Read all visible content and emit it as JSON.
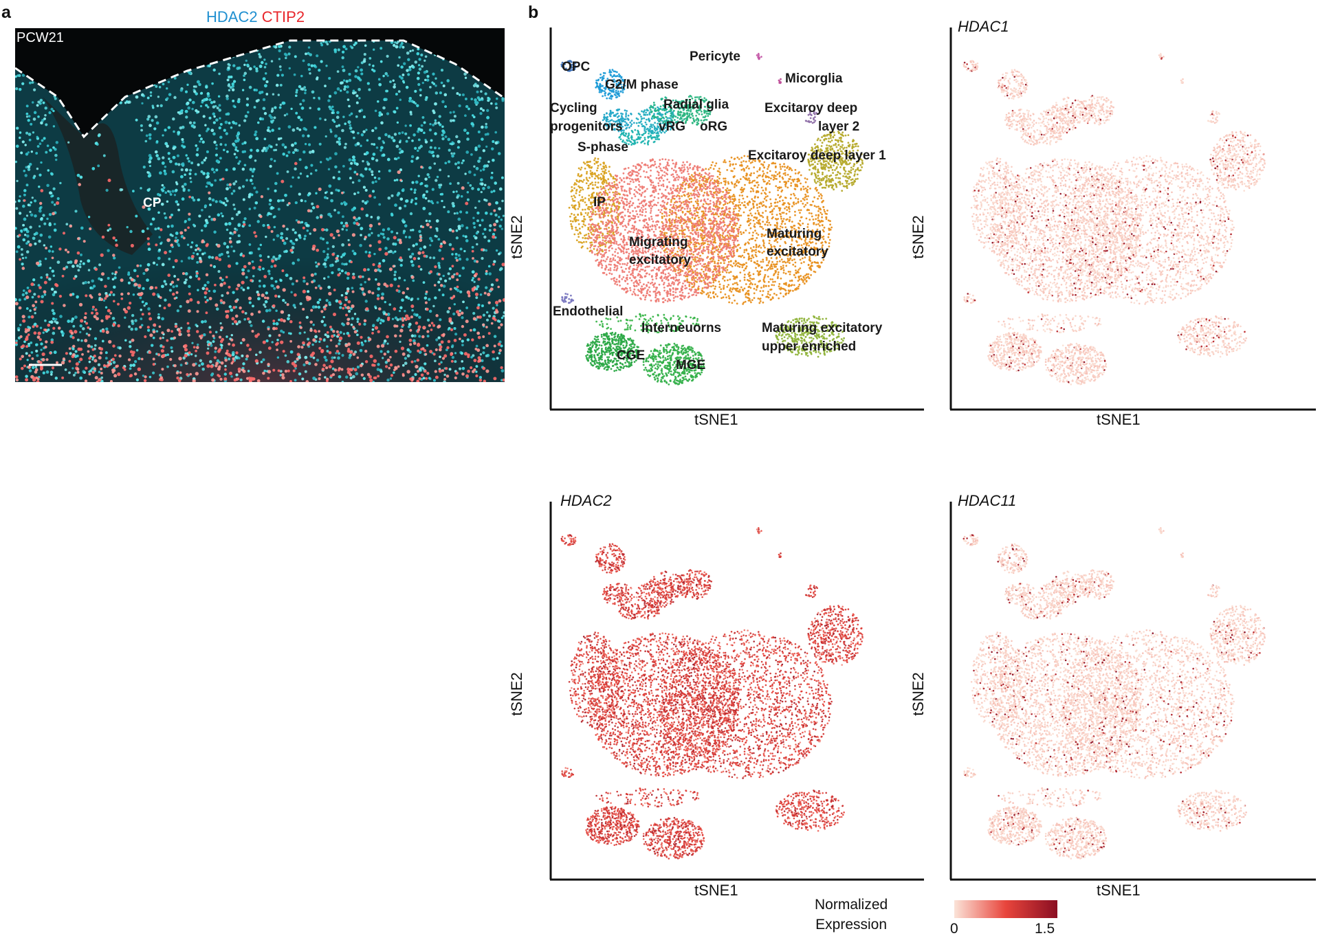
{
  "panel_a": {
    "letter": "a",
    "stain_label_1": "HDAC2",
    "stain_label_2": "CTIP2",
    "stain_color_1": "#1f8fd0",
    "stain_color_2": "#e8262b",
    "timepoint": "PCW21",
    "region_label": "CP"
  },
  "panel_b": {
    "letter": "b",
    "xlabel": "tSNE1",
    "ylabel": "tSNE2",
    "clusters": [
      {
        "label": "OPC",
        "color": "#3b6fb6"
      },
      {
        "label": "G2/M phase",
        "color": "#1d9bd7"
      },
      {
        "label": "Cycling progenitors",
        "color": "#22a7c7"
      },
      {
        "label": "S-phase",
        "color": "#1fb3b0"
      },
      {
        "label": "Radial glia",
        "color": "#21b28a"
      },
      {
        "label": "vRG",
        "color": "#23aec0"
      },
      {
        "label": "oRG",
        "color": "#2bb57f"
      },
      {
        "label": "Pericyte",
        "color": "#c55aa8"
      },
      {
        "label": "Micorglia",
        "color": "#c0509a"
      },
      {
        "label": "Excitaroy deep layer 2",
        "color": "#8e6fa8"
      },
      {
        "label": "Excitaroy deep layer 1",
        "color": "#b5a92a"
      },
      {
        "label": "IP",
        "color": "#d9a11f"
      },
      {
        "label": "Migrating excitatory",
        "color": "#ee7b74"
      },
      {
        "label": "Maturing excitatory",
        "color": "#e8901f"
      },
      {
        "label": "Endothelial",
        "color": "#7a78c0"
      },
      {
        "label": "Interneuorns",
        "color": "#3ab54a"
      },
      {
        "label": "Maturing excitatory upper enriched",
        "color": "#8fb33a"
      },
      {
        "label": "CGE",
        "color": "#2aa845"
      },
      {
        "label": "MGE",
        "color": "#34b04a"
      }
    ],
    "expression_panels": [
      {
        "gene": "HDAC1",
        "level": "low"
      },
      {
        "gene": "HDAC2",
        "level": "high"
      },
      {
        "gene": "HDAC11",
        "level": "low"
      }
    ],
    "colorbar": {
      "title_line1": "Normalized",
      "title_line2": "Expression",
      "min_label": "0",
      "max_label": "1.5",
      "color_low": "#fbe3d8",
      "color_mid": "#e8453c",
      "color_high": "#8a0e22"
    }
  }
}
